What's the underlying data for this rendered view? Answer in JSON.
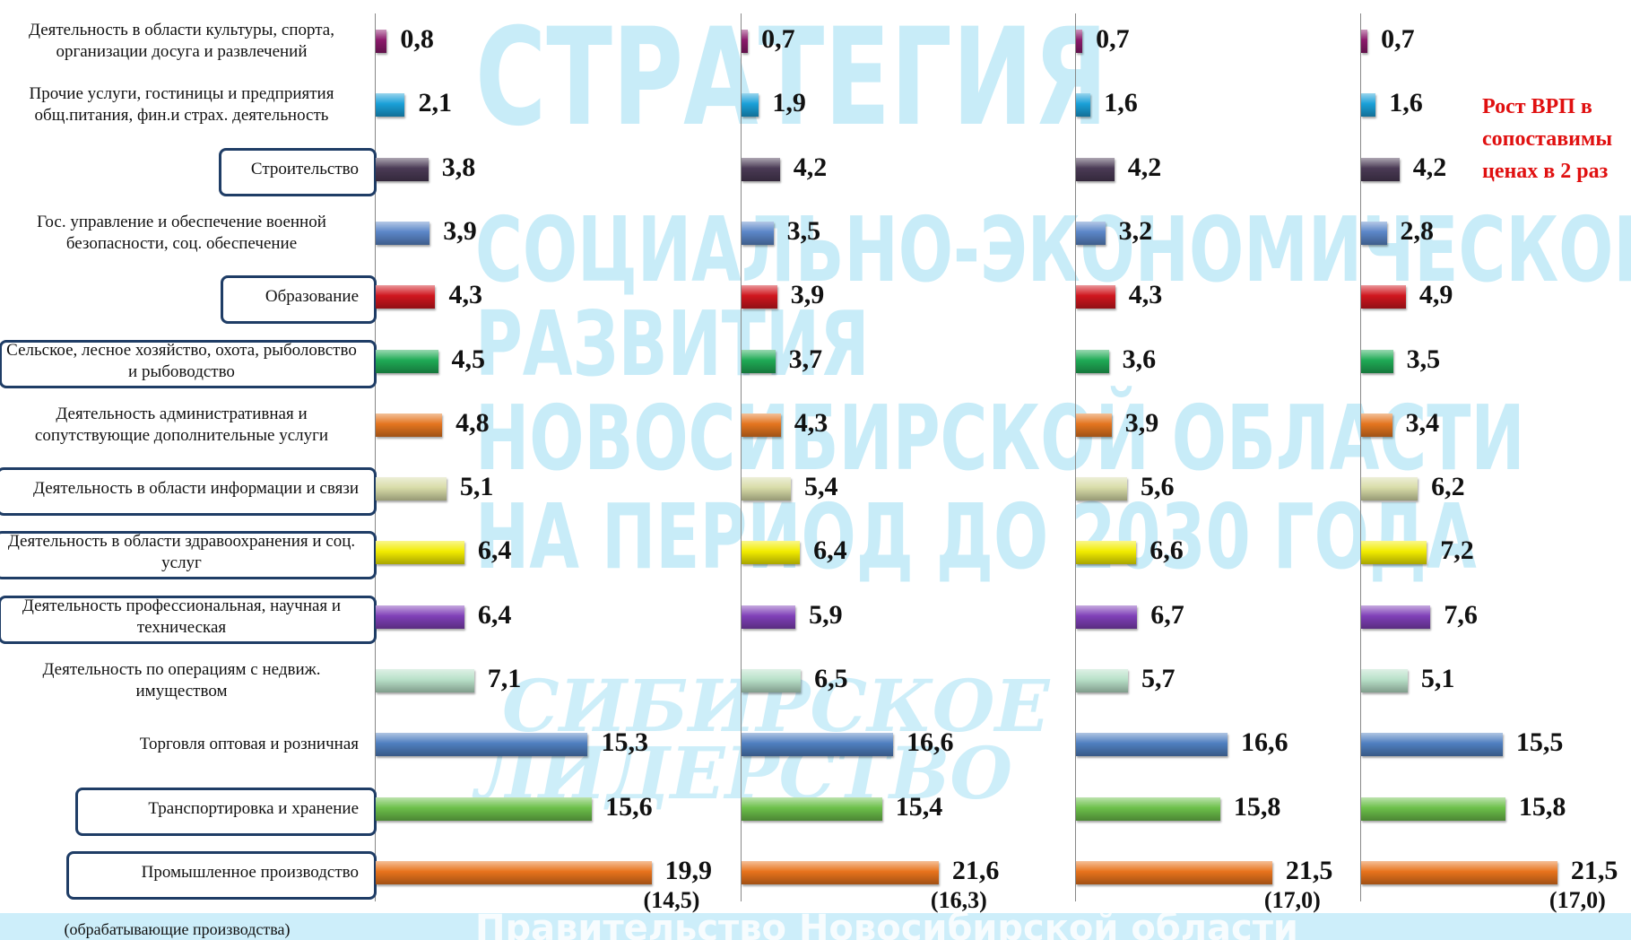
{
  "chart_data": {
    "type": "bar",
    "orientation": "horizontal",
    "categories": [
      "Деятельность в области культуры, спорта, организации досуга и развлечений",
      "Прочие  услуги, гостиницы и предприятия общ.питания, фин.и страх. деятельность",
      "Строительство",
      "Гос. управление и обеспечение военной безопасности, соц. обеспечение",
      "Образование",
      "Сельское, лесное хозяйство, охота, рыболовство и рыбоводство",
      "Деятельность административная и сопутствующие дополнительные услуги",
      "Деятельность в области информации и связи",
      "Деятельность в области здравоохранения и соц. услуг",
      "Деятельность профессиональная, научная и техническая",
      "Деятельность по операциям с недвиж. имуществом",
      "Торговля оптовая и розничная",
      "Транспортировка и хранение",
      "Промышленное производство"
    ],
    "category_note": "(обрабатывающие производства)",
    "colors": [
      "#8b1a6b",
      "#1aa0d8",
      "#4a3a55",
      "#5b86c8",
      "#d0161e",
      "#1faa55",
      "#e4751f",
      "#d8dca8",
      "#f2ec00",
      "#8040b8",
      "#b8e0c8",
      "#4f7fc0",
      "#6cc04a",
      "#e8731c"
    ],
    "highlight": [
      2,
      4,
      5,
      7,
      8,
      9,
      12,
      13
    ],
    "xlim": [
      0,
      22
    ],
    "series": [
      {
        "values": [
          0.8,
          2.1,
          3.8,
          3.9,
          4.3,
          4.5,
          4.8,
          5.1,
          6.4,
          6.4,
          7.1,
          15.3,
          15.6,
          19.9
        ],
        "value_labels": [
          "0,8",
          "2,1",
          "3,8",
          "3,9",
          "4,3",
          "4,5",
          "4,8",
          "5,1",
          "6,4",
          "6,4",
          "7,1",
          "15,3",
          "15,6",
          "19,9"
        ],
        "note": "(14,5)"
      },
      {
        "values": [
          0.7,
          1.9,
          4.2,
          3.5,
          3.9,
          3.7,
          4.3,
          5.4,
          6.4,
          5.9,
          6.5,
          16.6,
          15.4,
          21.6
        ],
        "value_labels": [
          "0,7",
          "1,9",
          "4,2",
          "3,5",
          "3,9",
          "3,7",
          "4,3",
          "5,4",
          "6,4",
          "5,9",
          "6,5",
          "16,6",
          "15,4",
          "21,6"
        ],
        "note": "(16,3)"
      },
      {
        "values": [
          0.7,
          1.6,
          4.2,
          3.2,
          4.3,
          3.6,
          3.9,
          5.6,
          6.6,
          6.7,
          5.7,
          16.6,
          15.8,
          21.5
        ],
        "value_labels": [
          "0,7",
          "1,6",
          "4,2",
          "3,2",
          "4,3",
          "3,6",
          "3,9",
          "5,6",
          "6,6",
          "6,7",
          "5,7",
          "16,6",
          "15,8",
          "21,5"
        ],
        "note": "(17,0)"
      },
      {
        "values": [
          0.7,
          1.6,
          4.2,
          2.8,
          4.9,
          3.5,
          3.4,
          6.2,
          7.2,
          7.6,
          5.1,
          15.5,
          15.8,
          21.5
        ],
        "value_labels": [
          "0,7",
          "1,6",
          "4,2",
          "2,8",
          "4,9",
          "3,5",
          "3,4",
          "6,2",
          "7,2",
          "7,6",
          "5,1",
          "15,5",
          "15,8",
          "21,5"
        ],
        "note": "(17,0)"
      }
    ],
    "annotation": [
      "Рост ВРП в",
      "сопоставимы",
      "ценах в 2 раз"
    ]
  },
  "watermark": {
    "lines": [
      "СТРАТЕГИЯ",
      "СОЦИАЛЬНО-ЭКОНОМИЧЕСКОГО",
      "РАЗВИТИЯ",
      "НОВОСИБИРСКОЙ ОБЛАСТИ",
      "НА ПЕРИОД ДО 2030 ГОДА"
    ],
    "logo": [
      "СИБИРСКОЕ",
      "ЛИДЕРСТВО"
    ],
    "footer": "Правительство Новосибирской области"
  }
}
